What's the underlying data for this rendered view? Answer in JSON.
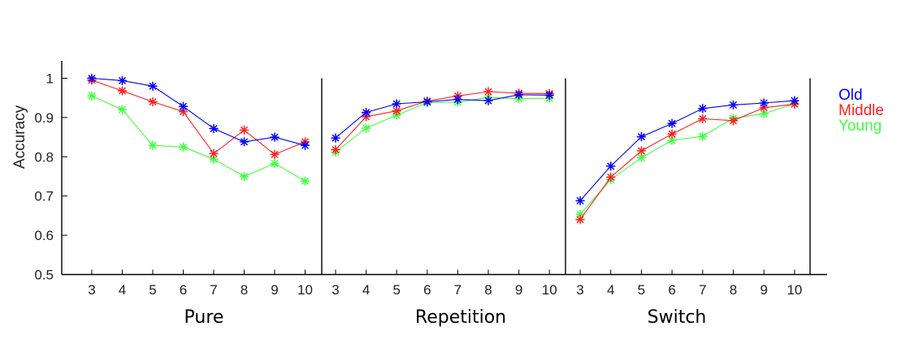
{
  "chart_data": {
    "type": "line",
    "ylabel": "Accuracy",
    "ylim": [
      0.5,
      1.05
    ],
    "yticks": [
      "0.5",
      "0.6",
      "0.7",
      "0.8",
      "0.9",
      "1"
    ],
    "ytick_values": [
      0.5,
      0.6,
      0.7,
      0.8,
      0.9,
      1.0
    ],
    "x": [
      "3",
      "4",
      "5",
      "6",
      "7",
      "8",
      "9",
      "10"
    ],
    "grid": false,
    "legend_position": "right",
    "colors": {
      "Old": "#0000ff",
      "Middle": "#ff2020",
      "Young": "#40ff40"
    },
    "panels": [
      {
        "label": "Pure",
        "series": [
          {
            "name": "Old",
            "values": [
              1.0,
              0.994,
              0.98,
              0.928,
              0.872,
              0.838,
              0.85,
              0.829
            ]
          },
          {
            "name": "Middle",
            "values": [
              0.995,
              0.968,
              0.94,
              0.915,
              0.808,
              0.868,
              0.806,
              0.838
            ]
          },
          {
            "name": "Young",
            "values": [
              0.955,
              0.92,
              0.829,
              0.825,
              0.794,
              0.75,
              0.783,
              0.738
            ]
          }
        ]
      },
      {
        "label": "Repetition",
        "series": [
          {
            "name": "Old",
            "values": [
              0.848,
              0.913,
              0.935,
              0.94,
              0.946,
              0.943,
              0.958,
              0.957
            ]
          },
          {
            "name": "Middle",
            "values": [
              0.818,
              0.902,
              0.917,
              0.942,
              0.955,
              0.966,
              0.962,
              0.961
            ]
          },
          {
            "name": "Young",
            "values": [
              0.812,
              0.873,
              0.906,
              0.938,
              0.939,
              0.951,
              0.948,
              0.949
            ]
          }
        ]
      },
      {
        "label": "Switch",
        "series": [
          {
            "name": "Old",
            "values": [
              0.688,
              0.776,
              0.851,
              0.885,
              0.923,
              0.932,
              0.937,
              0.943
            ]
          },
          {
            "name": "Middle",
            "values": [
              0.64,
              0.748,
              0.815,
              0.858,
              0.897,
              0.892,
              0.925,
              0.934
            ]
          },
          {
            "name": "Young",
            "values": [
              0.653,
              0.742,
              0.798,
              0.842,
              0.852,
              0.898,
              0.91,
              0.935
            ]
          }
        ]
      }
    ],
    "legend": [
      "Old",
      "Middle",
      "Young"
    ]
  }
}
